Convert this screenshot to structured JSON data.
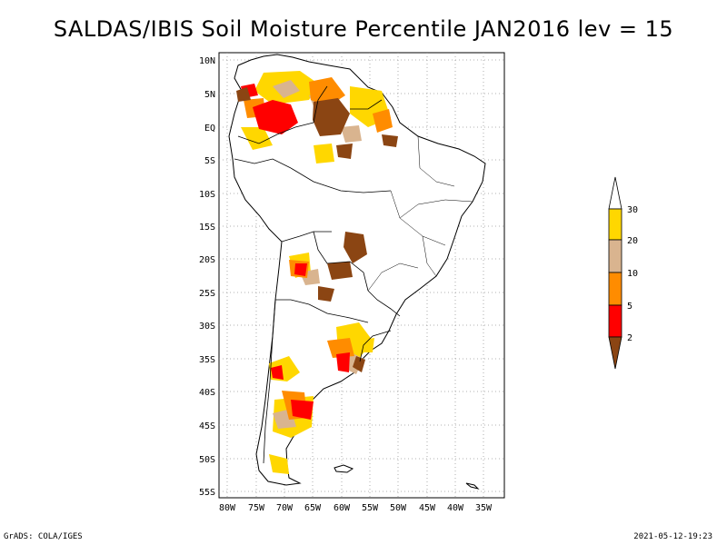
{
  "title": "SALDAS/IBIS Soil Moisture Percentile JAN2016 lev = 15",
  "footer": {
    "credit": "GrADS: COLA/IGES",
    "timestamp": "2021-05-12-19:23"
  },
  "axes": {
    "lat_labels": [
      "10N",
      "5N",
      "EQ",
      "5S",
      "10S",
      "15S",
      "20S",
      "25S",
      "30S",
      "35S",
      "40S",
      "45S",
      "50S",
      "55S"
    ],
    "lon_labels": [
      "80W",
      "75W",
      "70W",
      "65W",
      "60W",
      "55W",
      "50W",
      "45W",
      "40W",
      "35W"
    ]
  },
  "legend": {
    "labels": [
      "30",
      "20",
      "10",
      "5",
      "2"
    ],
    "colors": {
      "above30": "#ffffff",
      "c20_30": "#ffd700",
      "c10_20": "#d9b48f",
      "c5_10": "#ff8c00",
      "c2_5": "#ff0000",
      "below2": "#8b4513"
    }
  }
}
